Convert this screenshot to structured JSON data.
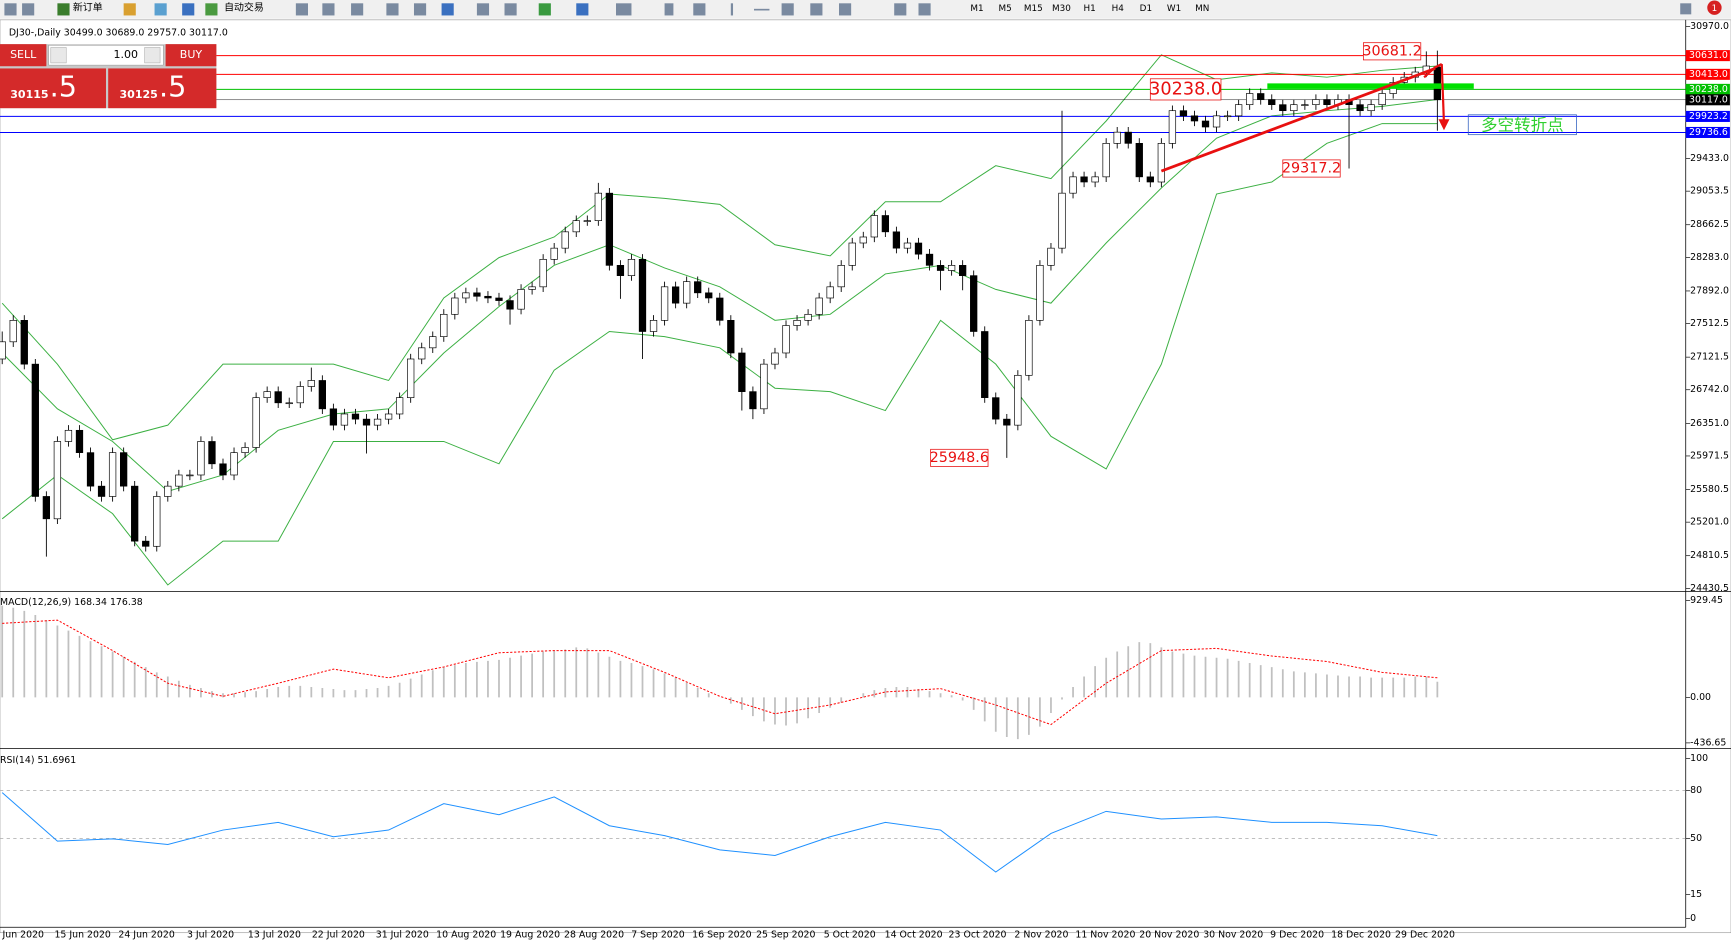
{
  "toolbar": {
    "new_order": "新订单",
    "auto_trade": "自动交易",
    "timeframes": [
      "M1",
      "M5",
      "M15",
      "M30",
      "H1",
      "H4",
      "D1",
      "W1",
      "MN"
    ],
    "notification_count": "1"
  },
  "trade_panel": {
    "sell": "SELL",
    "buy": "BUY",
    "lot": "1.00",
    "sell_price": "30115",
    "sell_price_big": ".5",
    "buy_price": "30125",
    "buy_price_big": ".5"
  },
  "chart_data": {
    "type": "candlestick",
    "header": "DJ30-,Daily  30499.0 30689.0 29757.0 30117.0",
    "ylim": [
      24430.5,
      30970
    ],
    "yticks": [
      {
        "value": 30970,
        "label": "30970.0"
      },
      {
        "value": 29433,
        "label": "29433.0"
      },
      {
        "value": 29053.5,
        "label": "29053.5"
      },
      {
        "value": 28662.5,
        "label": "28662.5"
      },
      {
        "value": 28283,
        "label": "28283.0"
      },
      {
        "value": 27892,
        "label": "27892.0"
      },
      {
        "value": 27512.5,
        "label": "27512.5"
      },
      {
        "value": 27121.5,
        "label": "27121.5"
      },
      {
        "value": 26742,
        "label": "26742.0"
      },
      {
        "value": 26351,
        "label": "26351.0"
      },
      {
        "value": 25971.5,
        "label": "25971.5"
      },
      {
        "value": 25580.5,
        "label": "25580.5"
      },
      {
        "value": 25201,
        "label": "25201.0"
      },
      {
        "value": 24810.5,
        "label": "24810.5"
      },
      {
        "value": 24430.5,
        "label": "24430.5"
      }
    ],
    "bull_color": "#ffffff",
    "bear_color": "#000000",
    "ohlc": [
      [
        27100,
        27420,
        27040,
        27300
      ],
      [
        27300,
        27610,
        27240,
        27550
      ],
      [
        27550,
        27610,
        26980,
        27040
      ],
      [
        27040,
        27100,
        25440,
        25500
      ],
      [
        25500,
        25560,
        24800,
        25240
      ],
      [
        25240,
        26200,
        25180,
        26140
      ],
      [
        26140,
        26330,
        26080,
        26270
      ],
      [
        26270,
        26330,
        25950,
        26010
      ],
      [
        26010,
        26070,
        25560,
        25620
      ],
      [
        25620,
        25680,
        25440,
        25500
      ],
      [
        25500,
        26070,
        25440,
        26010
      ],
      [
        26010,
        26070,
        25560,
        25620
      ],
      [
        25620,
        25680,
        24920,
        24980
      ],
      [
        24980,
        25040,
        24860,
        24920
      ],
      [
        24920,
        25560,
        24860,
        25500
      ],
      [
        25500,
        25680,
        25440,
        25620
      ],
      [
        25620,
        25810,
        25560,
        25750
      ],
      [
        25750,
        25810,
        25690,
        25750
      ],
      [
        25750,
        26200,
        25690,
        26140
      ],
      [
        26140,
        26200,
        25820,
        25880
      ],
      [
        25880,
        25940,
        25690,
        25750
      ],
      [
        25750,
        26070,
        25690,
        26010
      ],
      [
        26010,
        26130,
        25950,
        26070
      ],
      [
        26070,
        26710,
        26010,
        26650
      ],
      [
        26650,
        26780,
        26590,
        26720
      ],
      [
        26720,
        26780,
        26530,
        26590
      ],
      [
        26590,
        26650,
        26530,
        26590
      ],
      [
        26590,
        26840,
        26530,
        26780
      ],
      [
        26780,
        27000,
        26720,
        26850
      ],
      [
        26850,
        26910,
        26460,
        26520
      ],
      [
        26520,
        26580,
        26270,
        26330
      ],
      [
        26330,
        26520,
        26270,
        26460
      ],
      [
        26460,
        26520,
        26340,
        26400
      ],
      [
        26400,
        26460,
        26000,
        26330
      ],
      [
        26330,
        26460,
        26270,
        26400
      ],
      [
        26400,
        26520,
        26340,
        26460
      ],
      [
        26460,
        26710,
        26400,
        26650
      ],
      [
        26650,
        27160,
        26590,
        27100
      ],
      [
        27100,
        27290,
        27040,
        27230
      ],
      [
        27230,
        27420,
        27170,
        27360
      ],
      [
        27360,
        27680,
        27300,
        27620
      ],
      [
        27620,
        27870,
        27560,
        27810
      ],
      [
        27810,
        27930,
        27750,
        27870
      ],
      [
        27870,
        27930,
        27770,
        27830
      ],
      [
        27830,
        27890,
        27750,
        27810
      ],
      [
        27810,
        27870,
        27720,
        27780
      ],
      [
        27780,
        27840,
        27500,
        27680
      ],
      [
        27680,
        27970,
        27620,
        27910
      ],
      [
        27910,
        28000,
        27850,
        27940
      ],
      [
        27940,
        28320,
        27880,
        28260
      ],
      [
        28260,
        28450,
        28200,
        28390
      ],
      [
        28390,
        28640,
        28330,
        28580
      ],
      [
        28580,
        28770,
        28520,
        28710
      ],
      [
        28710,
        28770,
        28650,
        28710
      ],
      [
        28710,
        29150,
        28650,
        29030
      ],
      [
        29030,
        29090,
        28130,
        28190
      ],
      [
        28190,
        28250,
        27800,
        28070
      ],
      [
        28070,
        28320,
        28010,
        28260
      ],
      [
        28260,
        28320,
        27100,
        27420
      ],
      [
        27420,
        27610,
        27360,
        27550
      ],
      [
        27550,
        28000,
        27490,
        27940
      ],
      [
        27940,
        28000,
        27690,
        27750
      ],
      [
        27750,
        28060,
        27690,
        28000
      ],
      [
        28000,
        28060,
        27810,
        27870
      ],
      [
        27870,
        27930,
        27750,
        27810
      ],
      [
        27810,
        27870,
        27490,
        27550
      ],
      [
        27550,
        27610,
        27110,
        27170
      ],
      [
        27170,
        27230,
        26500,
        26720
      ],
      [
        26720,
        26780,
        26400,
        26520
      ],
      [
        26520,
        27100,
        26460,
        27040
      ],
      [
        27040,
        27230,
        26980,
        27170
      ],
      [
        27170,
        27550,
        27110,
        27490
      ],
      [
        27490,
        27610,
        27430,
        27550
      ],
      [
        27550,
        27680,
        27490,
        27620
      ],
      [
        27620,
        27870,
        27560,
        27810
      ],
      [
        27810,
        28000,
        27750,
        27940
      ],
      [
        27940,
        28250,
        27880,
        28190
      ],
      [
        28190,
        28510,
        28130,
        28450
      ],
      [
        28450,
        28580,
        28390,
        28520
      ],
      [
        28520,
        28830,
        28460,
        28770
      ],
      [
        28770,
        28830,
        28520,
        28580
      ],
      [
        28580,
        28640,
        28330,
        28390
      ],
      [
        28390,
        28510,
        28330,
        28450
      ],
      [
        28450,
        28510,
        28260,
        28320
      ],
      [
        28320,
        28380,
        28130,
        28190
      ],
      [
        28190,
        28250,
        27900,
        28130
      ],
      [
        28130,
        28250,
        28070,
        28190
      ],
      [
        28190,
        28250,
        27900,
        28070
      ],
      [
        28070,
        28130,
        27360,
        27420
      ],
      [
        27420,
        27480,
        26590,
        26650
      ],
      [
        26650,
        26710,
        26340,
        26400
      ],
      [
        26400,
        26460,
        25949,
        26330
      ],
      [
        26330,
        26970,
        26270,
        26910
      ],
      [
        26910,
        27610,
        26850,
        27550
      ],
      [
        27550,
        28250,
        27490,
        28190
      ],
      [
        28190,
        28450,
        28130,
        28390
      ],
      [
        28390,
        29990,
        28330,
        29030
      ],
      [
        29030,
        29280,
        28970,
        29220
      ],
      [
        29220,
        29280,
        29100,
        29160
      ],
      [
        29160,
        29280,
        29100,
        29220
      ],
      [
        29220,
        29670,
        29160,
        29610
      ],
      [
        29610,
        29800,
        29550,
        29740
      ],
      [
        29740,
        29800,
        29550,
        29610
      ],
      [
        29610,
        29670,
        29160,
        29220
      ],
      [
        29220,
        29280,
        29100,
        29160
      ],
      [
        29160,
        29670,
        29100,
        29610
      ],
      [
        29610,
        30050,
        29550,
        29990
      ],
      [
        29990,
        30050,
        29870,
        29930
      ],
      [
        29930,
        29990,
        29810,
        29870
      ],
      [
        29870,
        29930,
        29740,
        29800
      ],
      [
        29800,
        29990,
        29740,
        29930
      ],
      [
        29930,
        29990,
        29870,
        29930
      ],
      [
        29930,
        30120,
        29870,
        30060
      ],
      [
        30060,
        30250,
        30000,
        30190
      ],
      [
        30190,
        30250,
        30060,
        30120
      ],
      [
        30120,
        30180,
        30000,
        30060
      ],
      [
        30060,
        30120,
        29930,
        29990
      ],
      [
        29990,
        30120,
        29930,
        30060
      ],
      [
        30060,
        30120,
        30000,
        30060
      ],
      [
        30060,
        30180,
        30000,
        30120
      ],
      [
        30120,
        30180,
        30000,
        30060
      ],
      [
        30060,
        30180,
        30000,
        30120
      ],
      [
        30120,
        30180,
        29317,
        30060
      ],
      [
        30060,
        30120,
        29930,
        29990
      ],
      [
        29990,
        30120,
        29930,
        30060
      ],
      [
        30060,
        30250,
        30000,
        30190
      ],
      [
        30190,
        30380,
        30130,
        30320
      ],
      [
        30320,
        30440,
        30260,
        30380
      ],
      [
        30380,
        30500,
        30320,
        30440
      ],
      [
        30440,
        30681,
        30380,
        30510
      ],
      [
        30499,
        30689,
        29757,
        30117
      ]
    ],
    "sample_x": [
      0,
      5,
      10,
      15,
      20,
      25,
      30,
      35,
      40,
      45,
      50,
      55,
      60,
      65,
      70,
      75,
      80,
      85,
      90,
      95,
      100,
      105,
      110,
      115,
      120,
      125,
      130
    ],
    "bollinger": {
      "color": "#3cb043",
      "upper": [
        27750,
        27040,
        26160,
        26330,
        27040,
        27040,
        27040,
        26850,
        27810,
        28280,
        28520,
        29020,
        28970,
        28900,
        28430,
        28300,
        28930,
        28930,
        29350,
        29200,
        29870,
        30640,
        30350,
        30430,
        30380,
        30460,
        30510
      ],
      "middle": [
        27170,
        26520,
        26140,
        25560,
        25750,
        26270,
        26460,
        26520,
        27170,
        27710,
        28190,
        28430,
        28160,
        27940,
        27550,
        27620,
        28090,
        28190,
        27910,
        27750,
        28450,
        29090,
        29670,
        29930,
        29990,
        30040,
        30120
      ],
      "lower": [
        25240,
        25750,
        25300,
        24470,
        24980,
        24980,
        26140,
        26140,
        26140,
        25880,
        26970,
        27420,
        27360,
        27230,
        26760,
        26720,
        26500,
        27550,
        27040,
        26200,
        25820,
        27040,
        29020,
        29160,
        29610,
        29840,
        29840
      ]
    },
    "hlines": [
      {
        "value": 30631,
        "label": "30631.0",
        "color": "#ff0000"
      },
      {
        "value": 30413,
        "label": "30413.0",
        "color": "#ff0000"
      },
      {
        "value": 30238,
        "label": "30238.0",
        "color": "#00c000"
      },
      {
        "value": 30117,
        "label": "30117.0",
        "color": "#000000"
      },
      {
        "value": 29923.2,
        "label": "29923.2",
        "color": "#0000ff"
      },
      {
        "value": 29736.6,
        "label": "29736.6",
        "color": "#0000ff"
      }
    ],
    "annotations": [
      {
        "value": 30238,
        "label": "30238.0"
      },
      {
        "value": 30681.2,
        "label": "30681.2"
      },
      {
        "value": 29317.2,
        "label": "29317.2"
      },
      {
        "value": 25948.6,
        "label": "25948.6"
      }
    ],
    "note": "多空转折点",
    "x_labels": [
      "4 Jun 2020",
      "15 Jun 2020",
      "24 Jun 2020",
      "3 Jul 2020",
      "13 Jul 2020",
      "22 Jul 2020",
      "31 Jul 2020",
      "10 Aug 2020",
      "19 Aug 2020",
      "28 Aug 2020",
      "7 Sep 2020",
      "16 Sep 2020",
      "25 Sep 2020",
      "5 Oct 2020",
      "14 Oct 2020",
      "23 Oct 2020",
      "2 Nov 2020",
      "11 Nov 2020",
      "20 Nov 2020",
      "30 Nov 2020",
      "9 Dec 2020",
      "18 Dec 2020",
      "29 Dec 2020"
    ],
    "macd": {
      "title": "MACD(12,26,9) 168.34 176.38",
      "ylim": [
        -436.65,
        929.45
      ],
      "yticks": [
        929.45,
        {
          "value": 0,
          "label": "0.00"
        },
        -436.65
      ],
      "hist_color": "#c0c0c0",
      "signal_color": "#ff0000",
      "histogram": [
        880,
        860,
        830,
        790,
        740,
        690,
        640,
        590,
        540,
        490,
        440,
        390,
        340,
        290,
        240,
        200,
        160,
        120,
        90,
        60,
        40,
        40,
        50,
        60,
        80,
        100,
        110,
        110,
        100,
        90,
        80,
        70,
        70,
        80,
        90,
        110,
        140,
        180,
        220,
        260,
        290,
        310,
        330,
        340,
        350,
        360,
        380,
        400,
        420,
        440,
        450,
        460,
        480,
        470,
        430,
        390,
        350,
        330,
        300,
        270,
        230,
        190,
        140,
        90,
        40,
        0,
        -60,
        -120,
        -180,
        -230,
        -260,
        -270,
        -250,
        -200,
        -150,
        -100,
        -50,
        0,
        40,
        70,
        90,
        100,
        100,
        80,
        60,
        40,
        20,
        -30,
        -120,
        -230,
        -330,
        -380,
        -400,
        -360,
        -280,
        -150,
        -20,
        100,
        200,
        300,
        380,
        440,
        490,
        530,
        520,
        480,
        440,
        420,
        400,
        390,
        380,
        370,
        350,
        330,
        310,
        290,
        270,
        250,
        240,
        230,
        220,
        210,
        200,
        200,
        190,
        190,
        190,
        190,
        200,
        200,
        150
      ],
      "signal": [
        710,
        741,
        449,
        136,
        10,
        136,
        271,
        188,
        292,
        428,
        449,
        449,
        240,
        10,
        -157,
        -73,
        52,
        84,
        -73,
        -261,
        136,
        449,
        470,
        397,
        344,
        240,
        188
      ]
    },
    "rsi": {
      "title": "RSI(14) 51.6961",
      "ylim": [
        0,
        100
      ],
      "yticks": [
        100,
        80,
        50,
        15,
        0
      ],
      "levels": [
        80,
        50
      ],
      "color": "#1e90ff",
      "values": [
        78.6,
        48.3,
        49.7,
        46.2,
        55.2,
        60.0,
        51.0,
        55.2,
        71.7,
        64.8,
        75.9,
        57.9,
        51.7,
        42.8,
        39.3,
        51.0,
        60.0,
        55.2,
        29.0,
        53.1,
        66.9,
        62.1,
        63.4,
        60.0,
        60.0,
        57.9,
        51.7
      ]
    }
  }
}
